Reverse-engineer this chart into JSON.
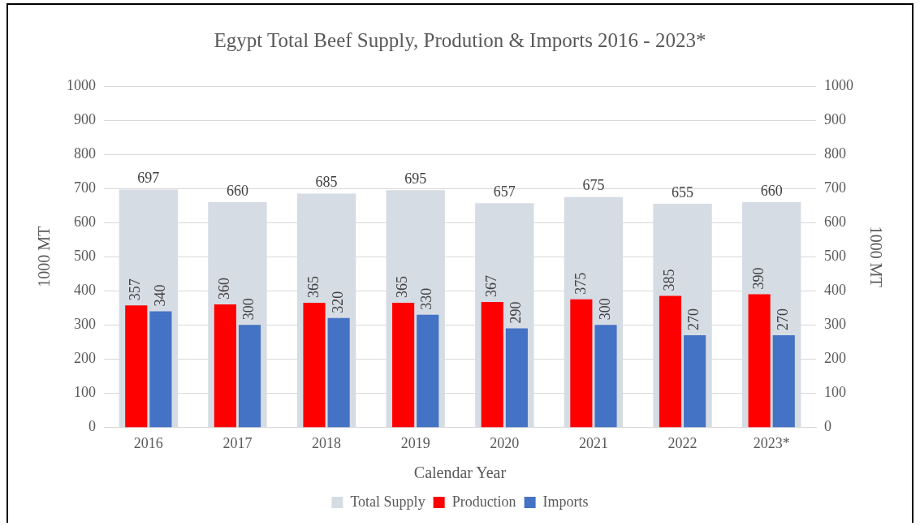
{
  "chart_data": {
    "type": "bar",
    "title": "Egypt Total Beef Supply, Prodution & Imports 2016 - 2023*",
    "xlabel": "Calendar Year",
    "ylabel": "1000 MT",
    "y2label": "1000 MT",
    "categories": [
      "2016",
      "2017",
      "2018",
      "2019",
      "2020",
      "2021",
      "2022",
      "2023*"
    ],
    "series": [
      {
        "name": "Total Supply",
        "color": "#d6dce4",
        "values": [
          697,
          660,
          685,
          695,
          657,
          675,
          655,
          660
        ]
      },
      {
        "name": "Production",
        "color": "#ff0000",
        "axis": "y2",
        "values": [
          357,
          360,
          365,
          365,
          367,
          375,
          385,
          390
        ]
      },
      {
        "name": "Imports",
        "color": "#4472c4",
        "axis": "y2",
        "values": [
          340,
          300,
          320,
          330,
          290,
          300,
          270,
          270
        ]
      }
    ],
    "ylim": [
      0,
      1000
    ],
    "yticks": [
      0,
      100,
      200,
      300,
      400,
      500,
      600,
      700,
      800,
      900,
      1000
    ],
    "y2lim": [
      0,
      1000
    ],
    "y2ticks": [
      0,
      100,
      200,
      300,
      400,
      500,
      600,
      700,
      800,
      900,
      1000
    ],
    "grid": "y",
    "legend": "bottom",
    "data_labels": true
  }
}
